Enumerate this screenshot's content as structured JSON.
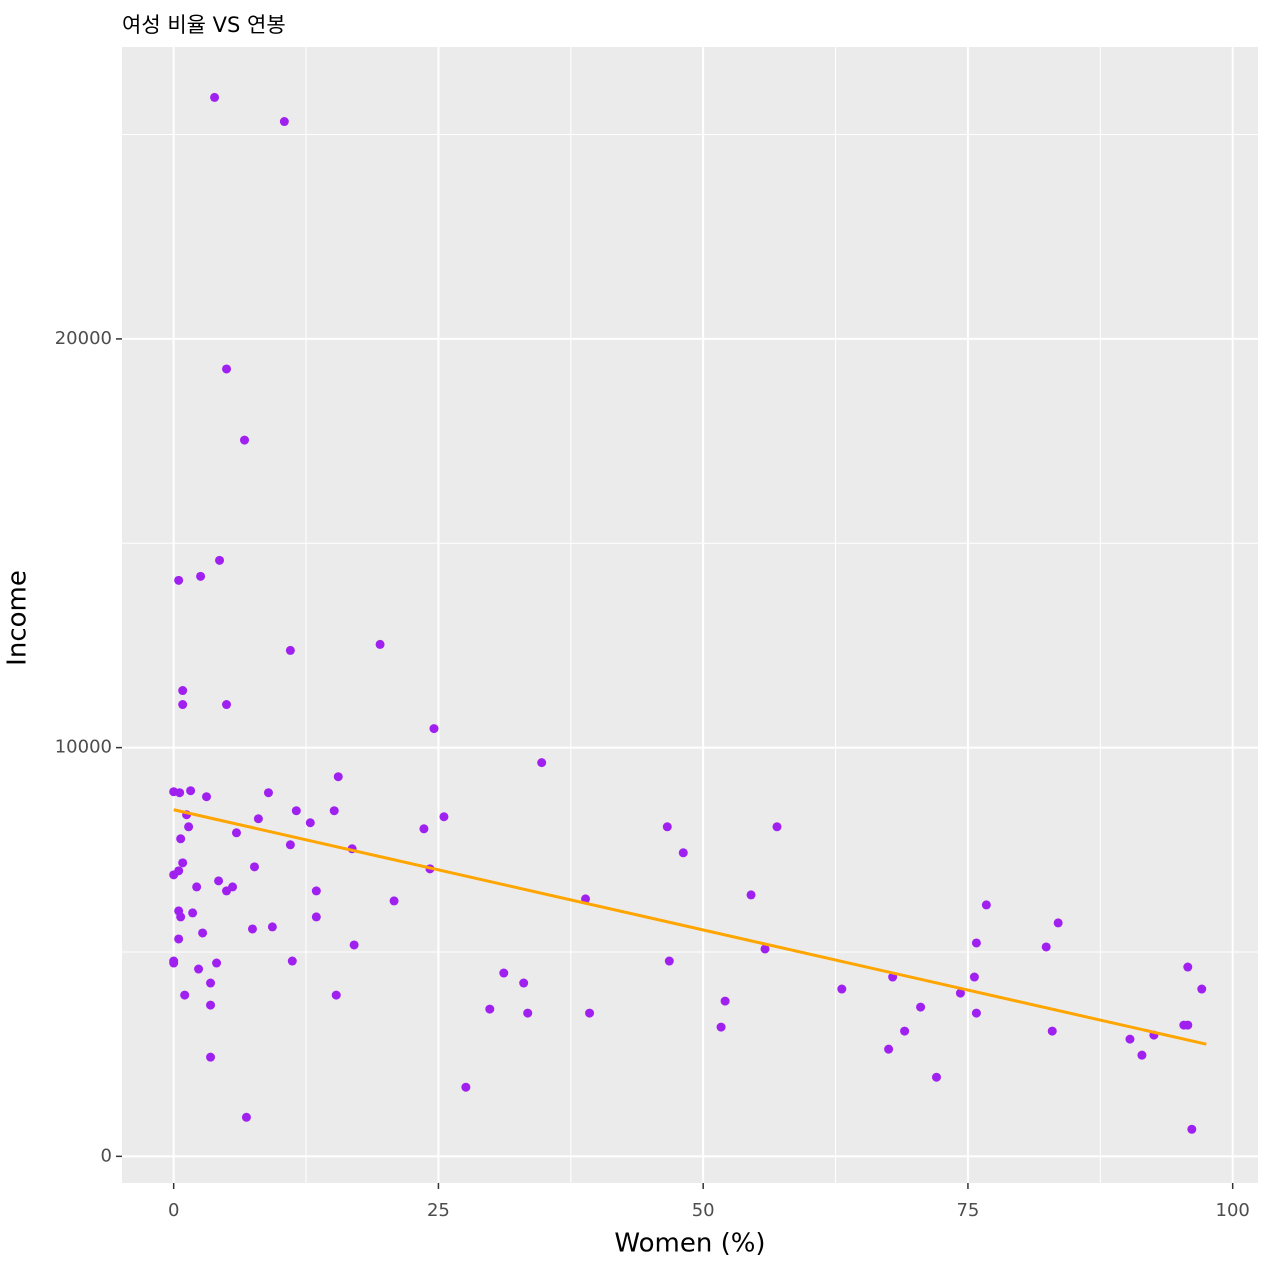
{
  "chart_data": {
    "type": "scatter",
    "title": "여성 비율 VS 연봉",
    "x_label": "Women (%)",
    "y_label": "Income",
    "color": "#a020f0",
    "x": [
      3.86,
      10.45,
      4.99,
      6.69,
      4.33,
      2.54,
      0.47,
      11.02,
      19.49,
      0.85,
      0.85,
      4.99,
      24.58,
      34.75,
      15.54,
      0,
      0.56,
      1.6,
      3.1,
      8.95,
      1.22,
      11.58,
      15.16,
      25.52,
      8.0,
      1.41,
      12.9,
      23.63,
      5.93,
      46.61,
      56.97,
      0.66,
      11.02,
      16.85,
      48.12,
      0.85,
      0.47,
      0,
      7.63,
      24.2,
      2.17,
      5.56,
      4.99,
      4.24,
      13.47,
      54.52,
      38.89,
      20.81,
      76.74,
      0.47,
      0.66,
      1.79,
      13.47,
      83.52,
      7.44,
      9.32,
      2.73,
      0.47,
      75.8,
      82.39,
      17.04,
      55.84,
      0,
      0,
      11.2,
      46.8,
      4.05,
      2.35,
      95.76,
      31.17,
      75.61,
      67.89,
      3.48,
      33.05,
      63.09,
      97.08,
      74.29,
      1.04,
      15.35,
      52.07,
      3.48,
      70.53,
      29.85,
      33.43,
      39.27,
      75.8,
      95.39,
      95.76,
      51.69,
      82.96,
      69.02,
      92.56,
      90.3,
      67.51,
      91.43,
      3.48,
      72.03,
      27.59,
      6.87,
      96.14
    ],
    "values": [
      25908,
      25319,
      19265,
      17525,
      14583,
      14191,
      14093,
      12378,
      12525,
      11397,
      11054,
      11054,
      10466,
      9633,
      9289,
      8922,
      8897,
      8946,
      8799,
      8897,
      8358,
      8456,
      8456,
      8309,
      8260,
      8064,
      8162,
      8015,
      7917,
      8064,
      8064,
      7770,
      7623,
      7525,
      7427,
      7181,
      6985,
      6887,
      7083,
      7034,
      6593,
      6593,
      6495,
      6740,
      6495,
      6397,
      6299,
      6250,
      6152,
      6005,
      5858,
      5956,
      5858,
      5711,
      5564,
      5613,
      5466,
      5319,
      5221,
      5123,
      5172,
      5074,
      4779,
      4730,
      4779,
      4779,
      4730,
      4583,
      4632,
      4485,
      4387,
      4387,
      4240,
      4240,
      4093,
      4093,
      3995,
      3946,
      3946,
      3799,
      3701,
      3652,
      3603,
      3505,
      3505,
      3505,
      3211,
      3211,
      3162,
      3064,
      3064,
      2966,
      2868,
      2623,
      2476,
      2427,
      1936,
      1691,
      956,
      662
    ],
    "trend_line": {
      "x": [
        0,
        97.51
      ],
      "values": [
        8480,
        2745
      ],
      "color": "#ffa500"
    },
    "xlim": [
      -4.88,
      102.39
    ],
    "ylim": [
      -652,
      27142
    ],
    "xticks": [
      0,
      25,
      50,
      75,
      100
    ],
    "yticks": [
      0,
      10000,
      20000
    ],
    "grid": true
  }
}
